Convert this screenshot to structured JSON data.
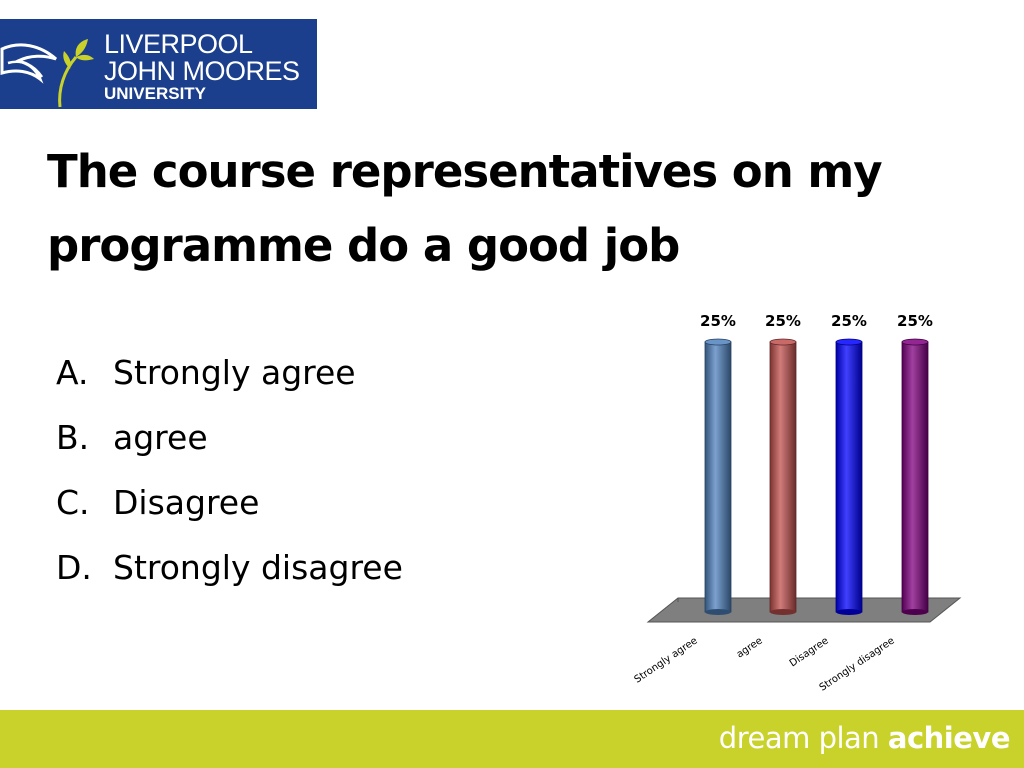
{
  "logo": {
    "line1": "LIVERPOOL",
    "line2": "JOHN MOORES",
    "line3": "UNIVERSITY",
    "bg_color": "#1b3f8c"
  },
  "question": {
    "title": "The course representatives on my programme do a good job"
  },
  "options": [
    {
      "letter": "A.",
      "text": "Strongly agree"
    },
    {
      "letter": "B.",
      "text": "agree"
    },
    {
      "letter": "C.",
      "text": "Disagree"
    },
    {
      "letter": "D.",
      "text": "Strongly disagree"
    }
  ],
  "chart_data": {
    "type": "bar",
    "categories": [
      "Strongly agree",
      "agree",
      "Disagree",
      "Strongly disagree"
    ],
    "values": [
      25,
      25,
      25,
      25
    ],
    "data_labels": [
      "25%",
      "25%",
      "25%",
      "25%"
    ],
    "colors": [
      "#4f81bd",
      "#c0504d",
      "#0000ff",
      "#800080"
    ],
    "ylim": [
      0,
      25
    ],
    "grid": false,
    "legend": "none",
    "style": "3d-cylinder"
  },
  "footer": {
    "word1": "dream",
    "word2": "plan",
    "word3": "achieve",
    "bg_color": "#c8d22a"
  }
}
